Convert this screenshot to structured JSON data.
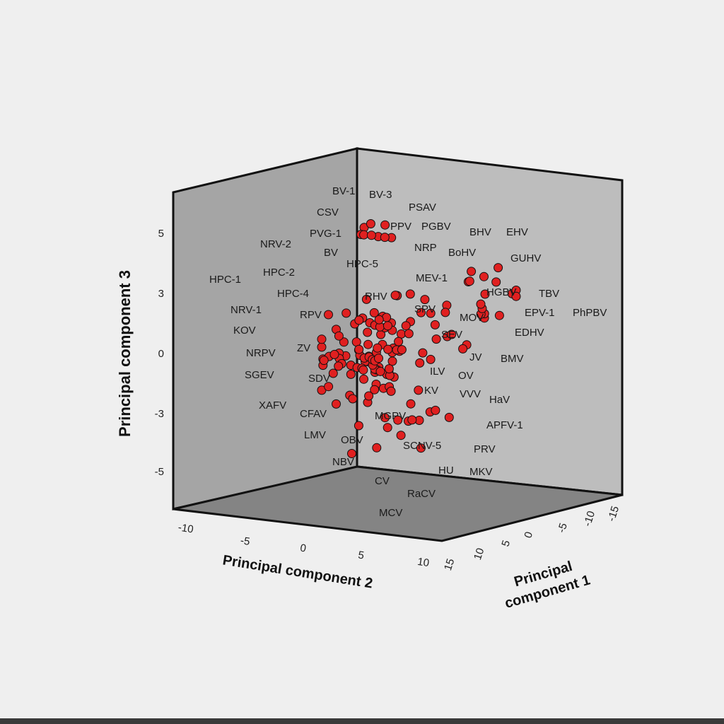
{
  "chart_data": {
    "type": "scatter",
    "title": "",
    "xlabel": "Principal component 1",
    "ylabel": "Principal component 2",
    "zlabel": "Principal component 3",
    "x_ticks": [
      "15",
      "10",
      "5",
      "0",
      "-5",
      "-10",
      "-15"
    ],
    "y_ticks": [
      "-10",
      "-5",
      "0",
      "5",
      "10"
    ],
    "z_ticks": [
      "5",
      "3",
      "0",
      "-3",
      "-5"
    ],
    "marker_color": "#e02020",
    "labels": [
      "BV-1",
      "BV-3",
      "PSAV",
      "CSV",
      "PVG-1",
      "PPV",
      "PGBV",
      "BHV",
      "EHV",
      "NRV-2",
      "BV",
      "NRP",
      "BoHV",
      "GUHV",
      "HPC-5",
      "HPC-1",
      "HPC-2",
      "MEV-1",
      "HPC-4",
      "RHV",
      "HGBV",
      "TBV",
      "NRV-1",
      "RPV",
      "SPV",
      "MOV",
      "EPV-1",
      "PhPBV",
      "KOV",
      "EDHV",
      "ZV",
      "SEV",
      "NRPV",
      "JV",
      "BMV",
      "SGEV",
      "SDV",
      "ILV",
      "OV",
      "KV",
      "VVV",
      "HaV",
      "XAFV",
      "CFAV",
      "MGPV",
      "APFV-1",
      "LMV",
      "OBV",
      "SCNV-5",
      "PRV",
      "NBV",
      "HU",
      "MKV",
      "CV",
      "RaCV",
      "MCV"
    ],
    "labeled_points_pc3": [
      {
        "label": "BV-1",
        "pc3": 7.8
      },
      {
        "label": "BV-3",
        "pc3": 7.5
      },
      {
        "label": "NRV-2",
        "pc3": 4.7
      },
      {
        "label": "HPC-1",
        "pc3": 3.6
      },
      {
        "label": "NRV-1",
        "pc3": 1.7
      },
      {
        "label": "SGEV",
        "pc3": -1.1
      },
      {
        "label": "XAFV",
        "pc3": -2.6
      },
      {
        "label": "NBV",
        "pc3": -5.5
      },
      {
        "label": "RaCV",
        "pc3": -7.0
      },
      {
        "label": "MCV",
        "pc3": -8.3
      }
    ],
    "point_count": 150,
    "grid": false,
    "legend": "none"
  }
}
